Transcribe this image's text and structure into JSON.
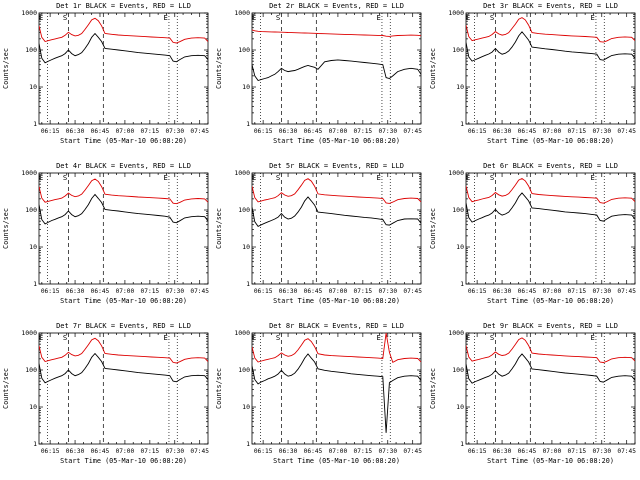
{
  "page": {
    "background": "#ffffff"
  },
  "colors": {
    "events": "#000000",
    "lld": "#dd0000",
    "axis": "#000000"
  },
  "chart_data": {
    "type": "line",
    "grid": [
      3,
      3
    ],
    "yscale": "log",
    "ylim": [
      1,
      1000
    ],
    "xlim": [
      8.3,
      110
    ],
    "xlabel": "Start Time (05-Mar-10 06:08:20)",
    "ylabel": "Counts/sec",
    "legend_note": "BLACK = Events, RED = LLD (legend embedded in each panel title)",
    "xticks": [
      {
        "m": 15,
        "label": "06:15"
      },
      {
        "m": 30,
        "label": "06:30"
      },
      {
        "m": 45,
        "label": "06:45"
      },
      {
        "m": 60,
        "label": "07:00"
      },
      {
        "m": 75,
        "label": "07:15"
      },
      {
        "m": 90,
        "label": "07:30"
      },
      {
        "m": 105,
        "label": "07:45"
      }
    ],
    "yticks": [
      {
        "v": 1,
        "label": "1"
      },
      {
        "v": 10,
        "label": "10"
      },
      {
        "v": 100,
        "label": "100"
      },
      {
        "v": 1000,
        "label": "1000"
      }
    ],
    "markers": {
      "vlines": [
        {
          "m": 13.5,
          "style": "dotted"
        },
        {
          "m": 26,
          "style": "dashed"
        },
        {
          "m": 47,
          "style": "dashed"
        },
        {
          "m": 86.5,
          "style": "dotted"
        },
        {
          "m": 91.5,
          "style": "dotted"
        }
      ],
      "labels": [
        {
          "m": 9.5,
          "t": "E"
        },
        {
          "m": 24,
          "t": "S"
        },
        {
          "m": 84.5,
          "t": "E"
        }
      ]
    },
    "x_minutes": [
      8.3,
      10,
      12,
      14,
      16,
      18,
      20,
      22,
      24,
      26,
      28,
      30,
      32,
      34,
      36,
      38,
      40,
      42,
      44,
      46,
      48,
      52,
      56,
      60,
      64,
      68,
      72,
      76,
      80,
      84,
      87,
      89,
      91,
      93,
      96,
      100,
      104,
      108,
      110
    ],
    "panels": [
      {
        "title": "Det 1r BLACK = Events, RED = LLD",
        "series": [
          {
            "name": "Events",
            "color": "#000000",
            "y": [
              150,
              60,
              45,
              50,
              55,
              60,
              65,
              70,
              80,
              100,
              80,
              70,
              75,
              85,
              110,
              150,
              220,
              280,
              220,
              170,
              110,
              105,
              100,
              95,
              90,
              85,
              82,
              79,
              76,
              73,
              70,
              50,
              48,
              55,
              65,
              70,
              72,
              70,
              55
            ]
          },
          {
            "name": "LLD",
            "color": "#dd0000",
            "y": [
              450,
              220,
              170,
              180,
              190,
              200,
              210,
              220,
              250,
              300,
              260,
              240,
              250,
              280,
              360,
              480,
              650,
              720,
              620,
              450,
              280,
              265,
              255,
              248,
              242,
              236,
              230,
              225,
              220,
              215,
              210,
              160,
              155,
              168,
              195,
              210,
              215,
              210,
              170
            ]
          }
        ]
      },
      {
        "title": "Det 2r BLACK = Events, RED = LLD",
        "series": [
          {
            "name": "Events",
            "color": "#000000",
            "y": [
              40,
              20,
              15,
              16,
              17,
              18,
              20,
              22,
              26,
              32,
              28,
              26,
              27,
              28,
              30,
              33,
              36,
              38,
              36,
              34,
              30,
              48,
              52,
              54,
              52,
              50,
              48,
              46,
              44,
              42,
              40,
              18,
              17,
              20,
              26,
              30,
              32,
              30,
              22
            ]
          },
          {
            "name": "LLD",
            "color": "#dd0000",
            "y": [
              350,
              330,
              320,
              315,
              312,
              310,
              308,
              306,
              304,
              302,
              300,
              298,
              296,
              294,
              292,
              290,
              288,
              286,
              284,
              282,
              280,
              276,
              272,
              268,
              264,
              260,
              257,
              254,
              251,
              248,
              246,
              236,
              233,
              240,
              246,
              250,
              252,
              250,
              243
            ]
          }
        ]
      },
      {
        "title": "Det 3r BLACK = Events, RED = LLD",
        "series": [
          {
            "name": "Events",
            "color": "#000000",
            "y": [
              160,
              65,
              50,
              55,
              60,
              66,
              72,
              78,
              88,
              110,
              88,
              77,
              82,
              94,
              120,
              165,
              240,
              310,
              240,
              185,
              120,
              114,
              108,
              103,
              98,
              93,
              89,
              86,
              83,
              80,
              77,
              55,
              53,
              60,
              71,
              77,
              79,
              77,
              60
            ]
          },
          {
            "name": "LLD",
            "color": "#dd0000",
            "y": [
              470,
              230,
              180,
              190,
              200,
              210,
              220,
              232,
              262,
              315,
              272,
              252,
              262,
              295,
              380,
              500,
              680,
              750,
              650,
              470,
              295,
              278,
              268,
              260,
              253,
              247,
              241,
              236,
              231,
              226,
              221,
              168,
              163,
              176,
              205,
              220,
              226,
              220,
              178
            ]
          }
        ]
      },
      {
        "title": "Det 4r BLACK = Events, RED = LLD",
        "series": [
          {
            "name": "Events",
            "color": "#000000",
            "y": [
              140,
              55,
              42,
              47,
              52,
              56,
              61,
              66,
              75,
              94,
              75,
              66,
              70,
              80,
              103,
              140,
              205,
              262,
              206,
              159,
              103,
              98,
              94,
              89,
              84,
              80,
              77,
              74,
              71,
              68,
              64,
              47,
              45,
              51,
              61,
              66,
              68,
              66,
              51
            ]
          },
          {
            "name": "LLD",
            "color": "#dd0000",
            "y": [
              430,
              210,
              162,
              172,
              182,
              191,
              200,
              210,
              239,
              287,
              248,
              229,
              239,
              267,
              344,
              458,
              620,
              688,
              592,
              430,
              267,
              253,
              244,
              237,
              231,
              225,
              220,
              215,
              210,
              205,
              200,
              153,
              148,
              160,
              186,
              200,
              205,
              200,
              162
            ]
          }
        ]
      },
      {
        "title": "Det 5r BLACK = Events, RED = LLD",
        "series": [
          {
            "name": "Events",
            "color": "#000000",
            "y": [
              120,
              48,
              36,
              40,
              44,
              48,
              52,
              57,
              64,
              80,
              64,
              57,
              60,
              69,
              88,
              120,
              176,
              225,
              176,
              136,
              88,
              84,
              80,
              76,
              72,
              69,
              66,
              63,
              61,
              58,
              55,
              40,
              39,
              44,
              52,
              57,
              58,
              57,
              44
            ]
          },
          {
            "name": "LLD",
            "color": "#dd0000",
            "y": [
              440,
              215,
              166,
              176,
              186,
              195,
              205,
              215,
              244,
              293,
              254,
              234,
              244,
              273,
              351,
              468,
              634,
              703,
              605,
              440,
              273,
              258,
              249,
              242,
              236,
              230,
              225,
              220,
              215,
              210,
              205,
              156,
              151,
              164,
              190,
              205,
              210,
              205,
              166
            ]
          }
        ]
      },
      {
        "title": "Det 6r BLACK = Events, RED = LLD",
        "series": [
          {
            "name": "Events",
            "color": "#000000",
            "y": [
              155,
              62,
              47,
              52,
              57,
              62,
              68,
              73,
              83,
              104,
              83,
              73,
              78,
              88,
              114,
              156,
              228,
              290,
              228,
              176,
              114,
              109,
              104,
              99,
              94,
              89,
              86,
              83,
              80,
              76,
              73,
              52,
              50,
              57,
              68,
              73,
              75,
              73,
              57
            ]
          },
          {
            "name": "LLD",
            "color": "#dd0000",
            "y": [
              445,
              218,
              168,
              178,
              188,
              198,
              208,
              218,
              247,
              297,
              257,
              237,
              247,
              277,
              356,
              475,
              643,
              712,
              613,
              445,
              277,
              262,
              252,
              245,
              239,
              233,
              228,
              223,
              218,
              213,
              208,
              158,
              153,
              166,
              193,
              208,
              213,
              208,
              168
            ]
          }
        ]
      },
      {
        "title": "Det 7r BLACK = Events, RED = LLD",
        "series": [
          {
            "name": "Events",
            "color": "#000000",
            "y": [
              150,
              60,
              45,
              50,
              55,
              60,
              65,
              70,
              80,
              100,
              80,
              70,
              75,
              85,
              110,
              150,
              220,
              280,
              220,
              170,
              110,
              105,
              100,
              95,
              90,
              85,
              82,
              79,
              76,
              73,
              70,
              50,
              48,
              55,
              65,
              70,
              72,
              70,
              55
            ]
          },
          {
            "name": "LLD",
            "color": "#dd0000",
            "y": [
              450,
              220,
              170,
              180,
              190,
              200,
              210,
              220,
              250,
              300,
              260,
              240,
              250,
              280,
              360,
              480,
              650,
              720,
              620,
              450,
              280,
              265,
              255,
              248,
              242,
              236,
              230,
              225,
              220,
              215,
              210,
              160,
              155,
              168,
              195,
              210,
              215,
              210,
              170
            ]
          }
        ]
      },
      {
        "title": "Det 8r BLACK = Events, RED = LLD",
        "series": [
          {
            "name": "Events",
            "color": "#000000",
            "y": [
              130,
              55,
              42,
              48,
              52,
              58,
              62,
              68,
              78,
              98,
              78,
              68,
              72,
              82,
              105,
              145,
              210,
              270,
              210,
              165,
              108,
              98,
              92,
              88,
              84,
              79,
              76,
              73,
              70,
              68,
              66,
              2,
              45,
              52,
              62,
              68,
              70,
              68,
              52
            ]
          },
          {
            "name": "LLD",
            "color": "#dd0000",
            "y": [
              420,
              210,
              165,
              175,
              185,
              195,
              205,
              215,
              245,
              290,
              255,
              235,
              245,
              275,
              350,
              470,
              640,
              700,
              590,
              430,
              275,
              255,
              245,
              240,
              235,
              230,
              225,
              220,
              215,
              210,
              205,
              1000,
              300,
              160,
              190,
              205,
              210,
              205,
              165
            ]
          }
        ]
      },
      {
        "title": "Det 9r BLACK = Events, RED = LLD",
        "series": [
          {
            "name": "Events",
            "color": "#000000",
            "y": [
              145,
              58,
              44,
              49,
              53,
              58,
              63,
              68,
              77,
              97,
              77,
              68,
              73,
              82,
              107,
              146,
              214,
              272,
              214,
              165,
              107,
              102,
              97,
              92,
              87,
              83,
              80,
              77,
              74,
              71,
              68,
              49,
              47,
              53,
              63,
              68,
              70,
              68,
              53
            ]
          },
          {
            "name": "LLD",
            "color": "#dd0000",
            "y": [
              460,
              225,
              174,
              184,
              194,
              204,
              215,
              225,
              256,
              307,
              266,
              246,
              256,
              287,
              368,
              491,
              665,
              736,
              634,
              460,
              287,
              271,
              261,
              254,
              248,
              241,
              235,
              230,
              225,
              220,
              215,
              164,
              159,
              172,
              200,
              215,
              220,
              215,
              174
            ]
          }
        ]
      }
    ]
  }
}
